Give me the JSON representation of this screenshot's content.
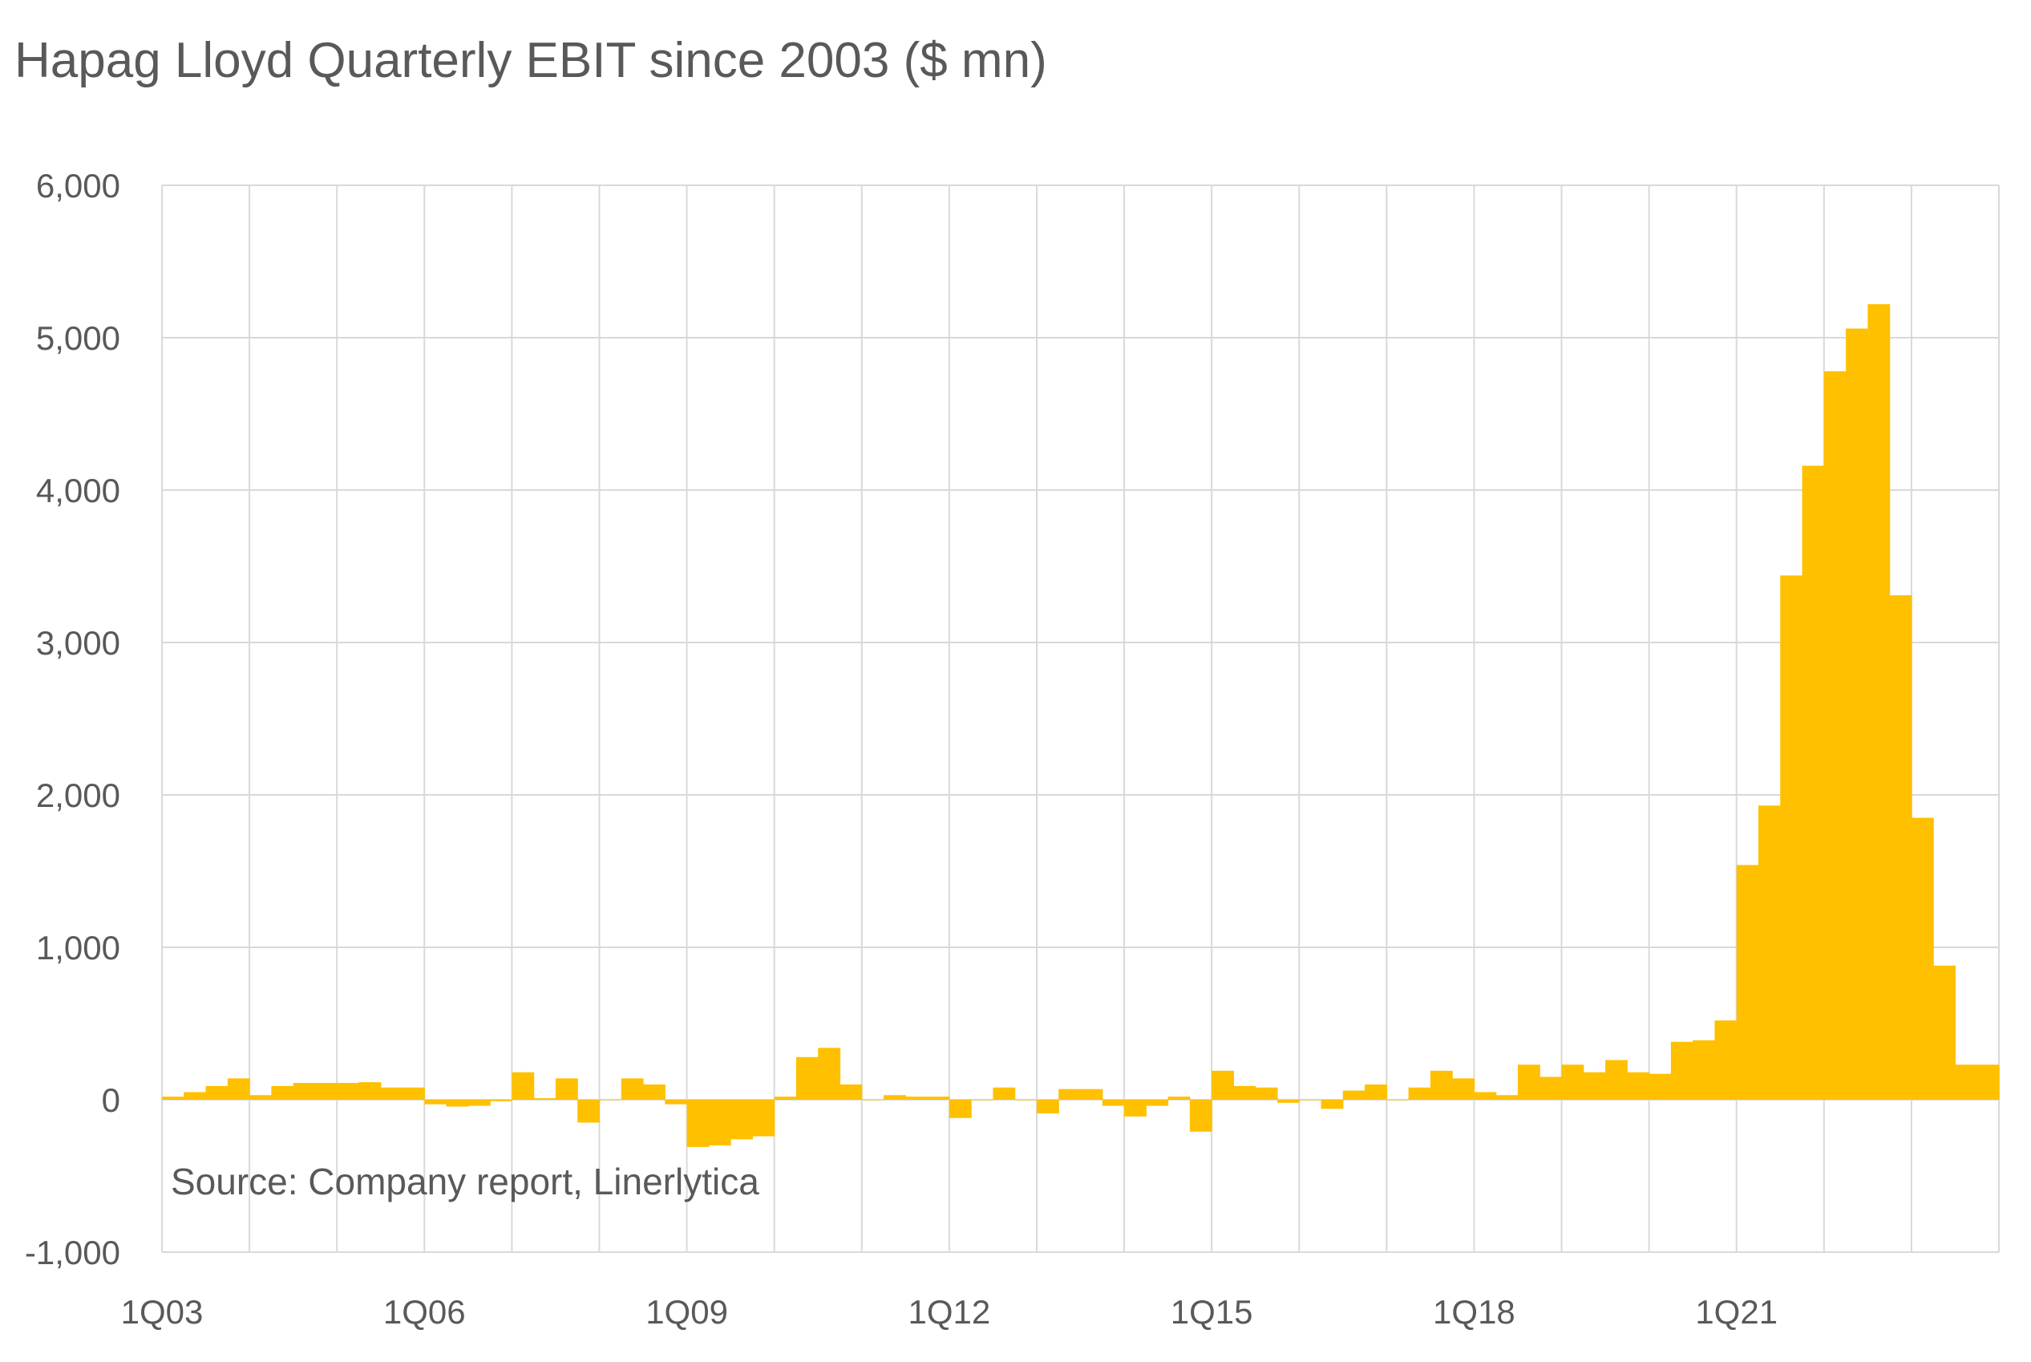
{
  "chart_data": {
    "type": "bar",
    "title": "Hapag Lloyd Quarterly EBIT since 2003 ($ mn)",
    "source": "Source: Company report, Linerlytica",
    "xlabel": "",
    "ylabel": "",
    "ylim": [
      -1000,
      6000
    ],
    "yticks": [
      -1000,
      0,
      1000,
      2000,
      3000,
      4000,
      5000,
      6000
    ],
    "ytick_labels": [
      "-1,000",
      "0",
      "1,000",
      "2,000",
      "3,000",
      "4,000",
      "5,000",
      "6,000"
    ],
    "xtick_labels": [
      "1Q03",
      "1Q06",
      "1Q09",
      "1Q12",
      "1Q15",
      "1Q18",
      "1Q21"
    ],
    "grid": true,
    "bar_color": "#FFC000",
    "categories": [
      "1Q03",
      "2Q03",
      "3Q03",
      "4Q03",
      "1Q04",
      "2Q04",
      "3Q04",
      "4Q04",
      "1Q05",
      "2Q05",
      "3Q05",
      "4Q05",
      "1Q06",
      "2Q06",
      "3Q06",
      "4Q06",
      "1Q07",
      "2Q07",
      "3Q07",
      "4Q07",
      "1Q08",
      "2Q08",
      "3Q08",
      "4Q08",
      "1Q09",
      "2Q09",
      "3Q09",
      "4Q09",
      "1Q10",
      "2Q10",
      "3Q10",
      "4Q10",
      "1Q11",
      "2Q11",
      "3Q11",
      "4Q11",
      "1Q12",
      "2Q12",
      "3Q12",
      "4Q12",
      "1Q13",
      "2Q13",
      "3Q13",
      "4Q13",
      "1Q14",
      "2Q14",
      "3Q14",
      "4Q14",
      "1Q15",
      "2Q15",
      "3Q15",
      "4Q15",
      "1Q16",
      "2Q16",
      "3Q16",
      "4Q16",
      "1Q17",
      "2Q17",
      "3Q17",
      "4Q17",
      "1Q18",
      "2Q18",
      "3Q18",
      "4Q18",
      "1Q19",
      "2Q19",
      "3Q19",
      "4Q19",
      "1Q20",
      "2Q20",
      "3Q20",
      "4Q20",
      "1Q21",
      "2Q21",
      "3Q21",
      "4Q21",
      "1Q22",
      "2Q22",
      "3Q22",
      "4Q22",
      "1Q23",
      "2Q23",
      "3Q23",
      "4Q23"
    ],
    "values": [
      20,
      50,
      90,
      140,
      30,
      90,
      110,
      110,
      110,
      115,
      80,
      80,
      -30,
      -45,
      -40,
      -10,
      180,
      10,
      140,
      -150,
      0,
      140,
      100,
      -30,
      -310,
      -300,
      -260,
      -240,
      20,
      280,
      340,
      100,
      0,
      30,
      20,
      20,
      -120,
      0,
      80,
      0,
      -90,
      70,
      70,
      -40,
      -110,
      -40,
      20,
      -210,
      190,
      90,
      80,
      -20,
      0,
      -60,
      60,
      100,
      0,
      80,
      190,
      140,
      50,
      30,
      230,
      150,
      230,
      180,
      260,
      180,
      170,
      380,
      390,
      520,
      1540,
      1930,
      3440,
      4160,
      4780,
      5060,
      5220,
      3310,
      1850,
      880,
      230,
      230
    ]
  }
}
